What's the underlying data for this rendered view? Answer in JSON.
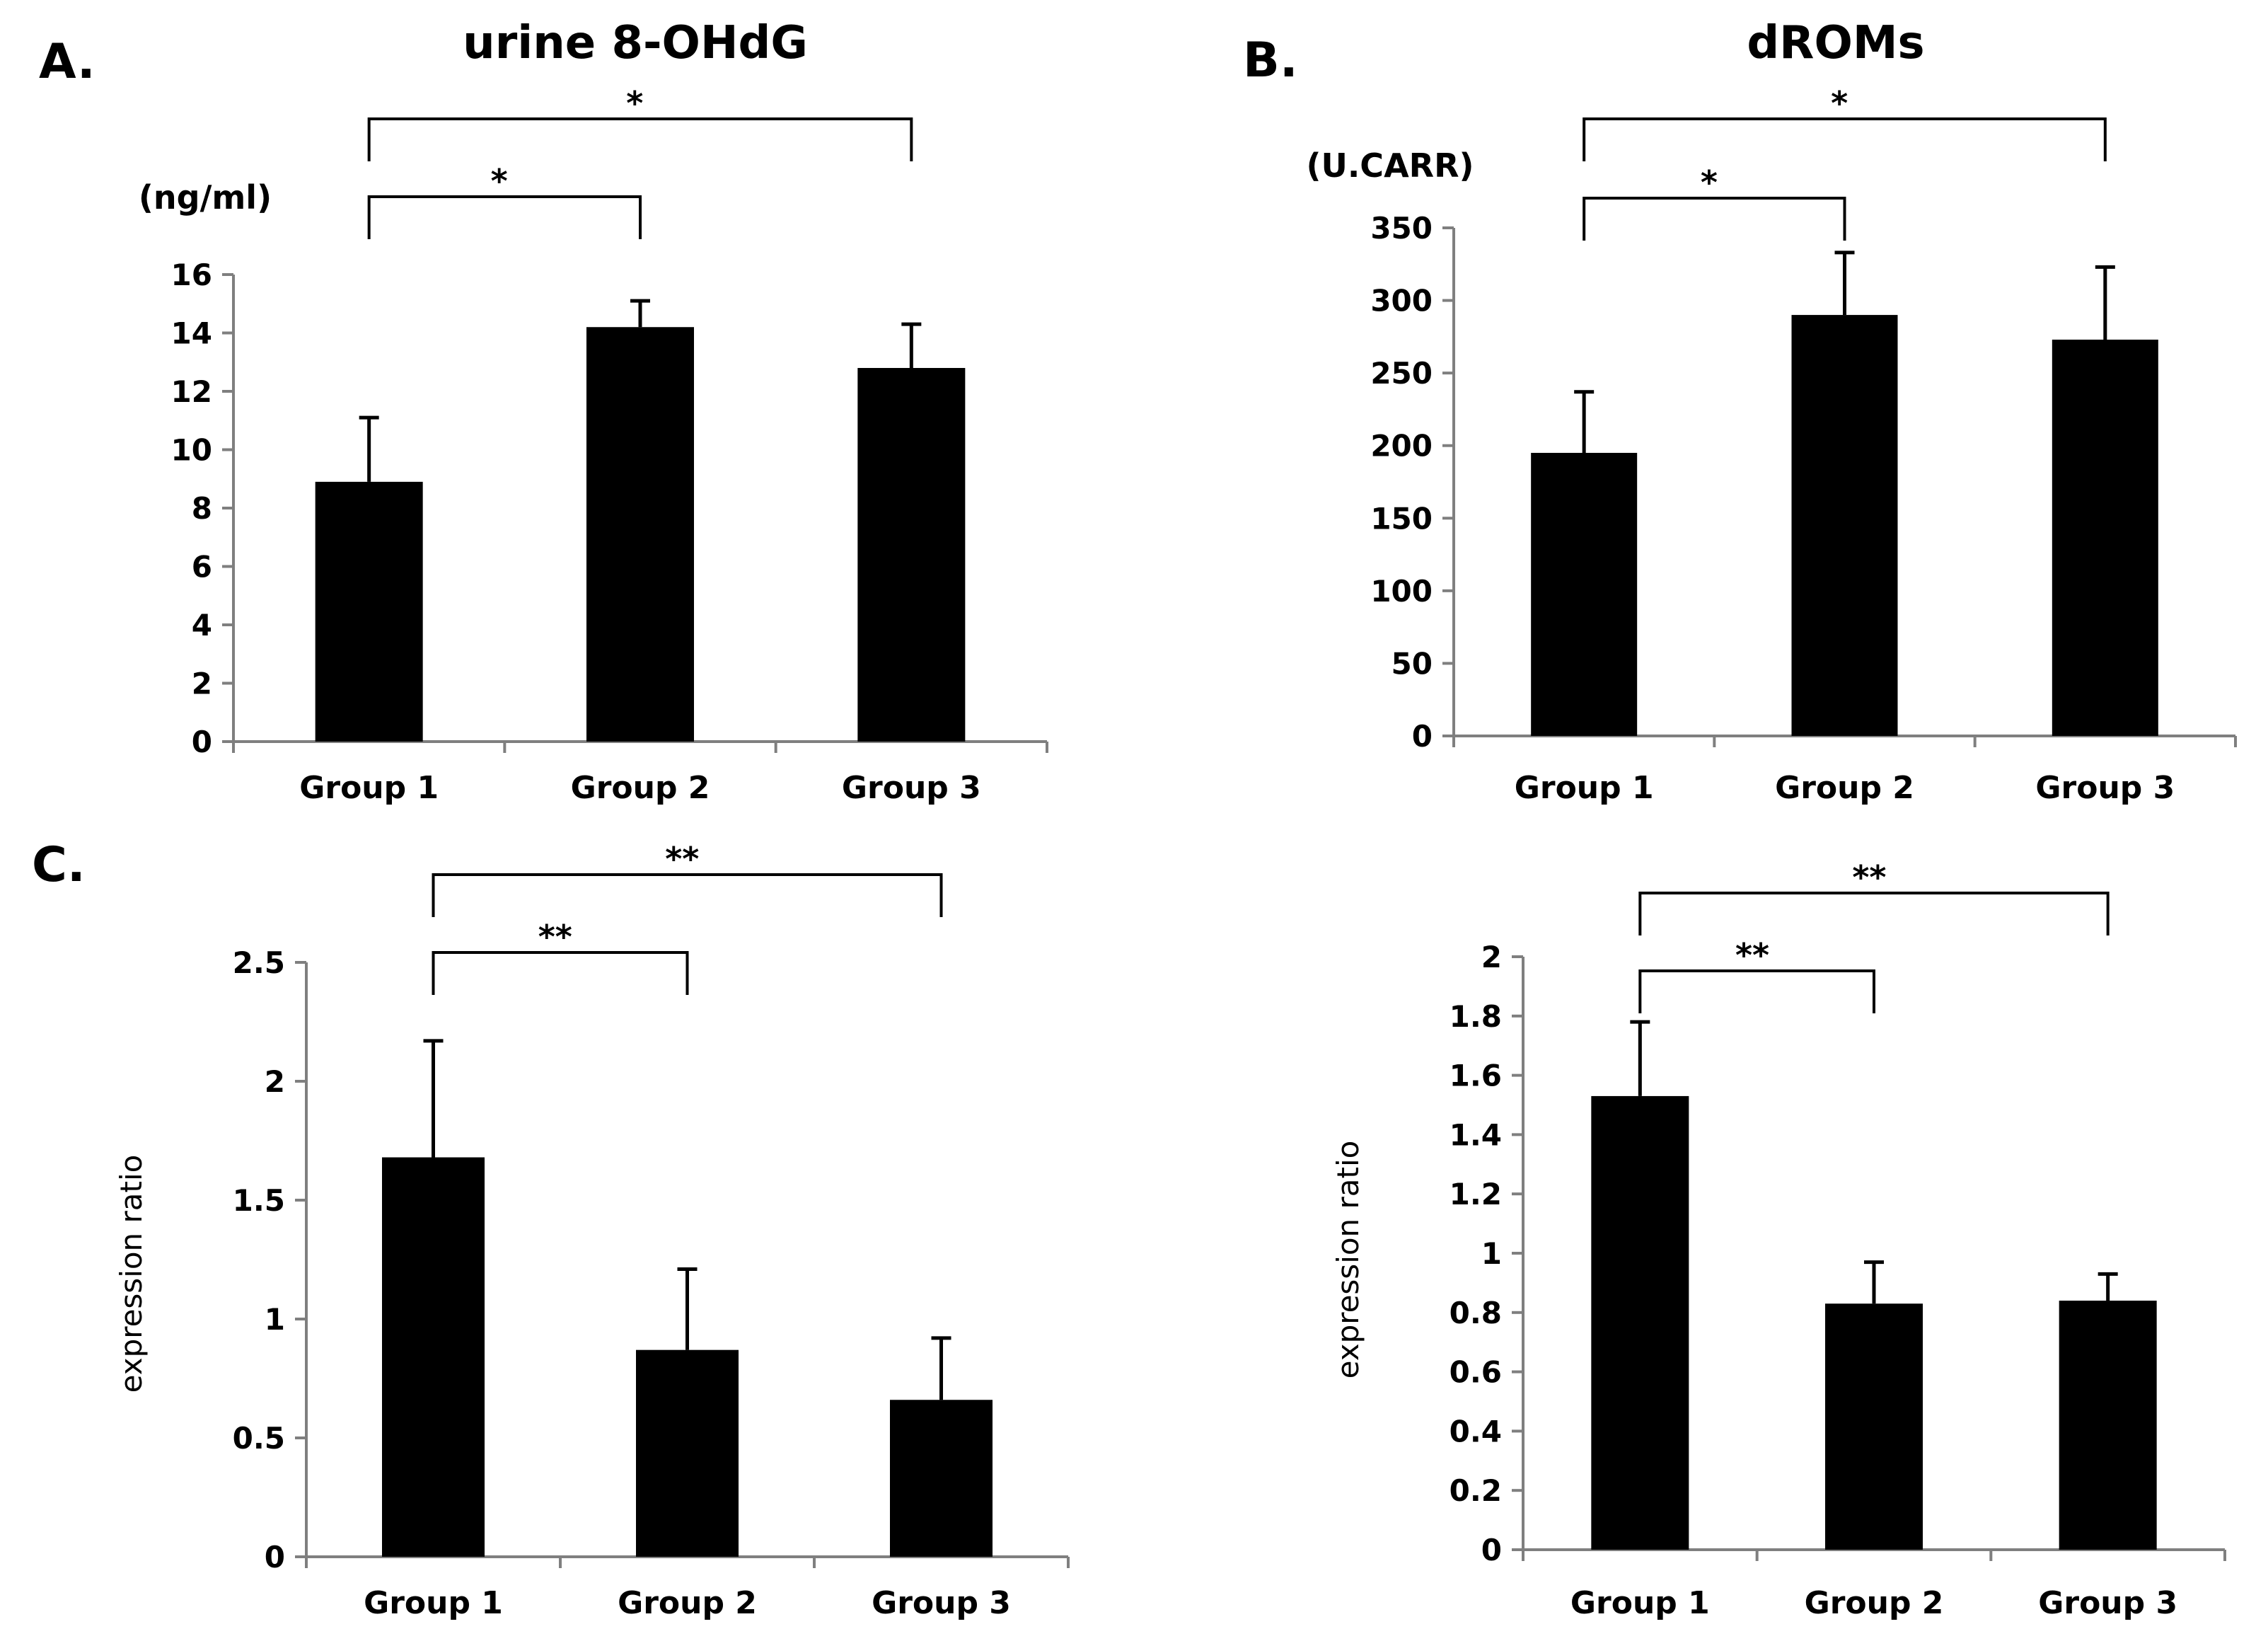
{
  "chart_data": [
    {
      "type": "bar",
      "panel_label": "A.",
      "title": "urine 8-OHdG",
      "unit_label": "(ng/ml)",
      "ylabel": "",
      "categories": [
        "Group 1",
        "Group 2",
        "Group 3"
      ],
      "values": [
        8.9,
        14.2,
        12.8
      ],
      "errors": [
        2.2,
        0.9,
        1.5
      ],
      "ylim": [
        0,
        16
      ],
      "yticks": [
        0,
        2,
        4,
        6,
        8,
        10,
        12,
        14,
        16
      ],
      "ytick_labels": [
        "0",
        "2",
        "4",
        "6",
        "8",
        "10",
        "12",
        "14",
        "16"
      ],
      "bar_color": "#000000",
      "axis_color": "#7f7f7f",
      "significance": [
        {
          "from": 0,
          "to": 1,
          "label": "*"
        },
        {
          "from": 0,
          "to": 2,
          "label": "*"
        }
      ]
    },
    {
      "type": "bar",
      "panel_label": "B.",
      "title": "dROMs",
      "unit_label": "(U.CARR)",
      "ylabel": "",
      "categories": [
        "Group 1",
        "Group 2",
        "Group 3"
      ],
      "values": [
        195,
        290,
        273
      ],
      "errors": [
        42,
        43,
        50
      ],
      "ylim": [
        0,
        350
      ],
      "yticks": [
        0,
        50,
        100,
        150,
        200,
        250,
        300,
        350
      ],
      "ytick_labels": [
        "0",
        "50",
        "100",
        "150",
        "200",
        "250",
        "300",
        "350"
      ],
      "bar_color": "#000000",
      "axis_color": "#7f7f7f",
      "significance": [
        {
          "from": 0,
          "to": 1,
          "label": "*"
        },
        {
          "from": 0,
          "to": 2,
          "label": "*"
        }
      ]
    },
    {
      "type": "bar",
      "panel_label": "C.",
      "title": "",
      "unit_label": "",
      "ylabel": "expression ratio",
      "categories": [
        "Group 1",
        "Group 2",
        "Group 3"
      ],
      "values": [
        1.68,
        0.87,
        0.66
      ],
      "errors": [
        0.49,
        0.34,
        0.26
      ],
      "ylim": [
        0,
        2.5
      ],
      "yticks": [
        0,
        0.5,
        1,
        1.5,
        2,
        2.5
      ],
      "ytick_labels": [
        "0",
        "0.5",
        "1",
        "1.5",
        "2",
        "2.5"
      ],
      "bar_color": "#000000",
      "axis_color": "#7f7f7f",
      "significance": [
        {
          "from": 0,
          "to": 1,
          "label": "**"
        },
        {
          "from": 0,
          "to": 2,
          "label": "**"
        }
      ]
    },
    {
      "type": "bar",
      "panel_label": "",
      "title": "",
      "unit_label": "",
      "ylabel": "expression ratio",
      "categories": [
        "Group 1",
        "Group 2",
        "Group 3"
      ],
      "values": [
        1.53,
        0.83,
        0.84
      ],
      "errors": [
        0.25,
        0.14,
        0.09
      ],
      "ylim": [
        0,
        2
      ],
      "yticks": [
        0,
        0.2,
        0.4,
        0.6,
        0.8,
        1,
        1.2,
        1.4,
        1.6,
        1.8,
        2
      ],
      "ytick_labels": [
        "0",
        "0.2",
        "0.4",
        "0.6",
        "0.8",
        "1",
        "1.2",
        "1.4",
        "1.6",
        "1.8",
        "2"
      ],
      "bar_color": "#000000",
      "axis_color": "#7f7f7f",
      "significance": [
        {
          "from": 0,
          "to": 1,
          "label": "**"
        },
        {
          "from": 0,
          "to": 2,
          "label": "**"
        }
      ]
    }
  ]
}
